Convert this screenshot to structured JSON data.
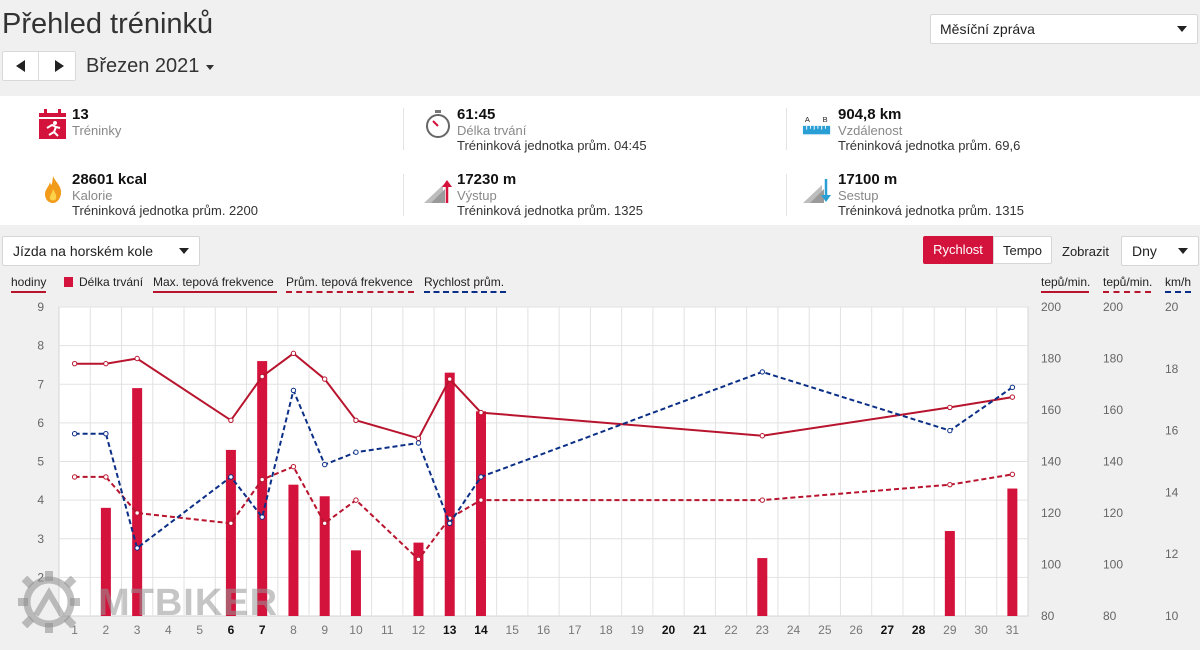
{
  "page": {
    "title": "Přehled tréninků"
  },
  "report_select": {
    "value": "Měsíční zpráva"
  },
  "month_nav": {
    "label": "Březen 2021"
  },
  "stats": [
    {
      "value": "13",
      "label": "Tréninky",
      "sub": "",
      "icon": "running-calendar-icon"
    },
    {
      "value": "61:45",
      "label": "Délka trvání",
      "sub": "Tréninková jednotka prům. 04:45",
      "icon": "stopwatch-icon"
    },
    {
      "value": "904,8 km",
      "label": "Vzdálenost",
      "sub": "Tréninková jednotka prům. 69,6",
      "icon": "ruler-distance-icon"
    },
    {
      "value": "28601 kcal",
      "label": "Kalorie",
      "sub": "Tréninková jednotka prům. 2200",
      "icon": "flame-icon"
    },
    {
      "value": "17230 m",
      "label": "Výstup",
      "sub": "Tréninková jednotka prům. 1325",
      "icon": "ascent-icon"
    },
    {
      "value": "17100 m",
      "label": "Sestup",
      "sub": "Tréninková jednotka prům. 1315",
      "icon": "descent-icon"
    }
  ],
  "controls": {
    "sport": "Jízda na horském kole",
    "speed": "Rychlost",
    "tempo": "Tempo",
    "show": "Zobrazit",
    "days": "Dny"
  },
  "watermark": {
    "text": "MTBIKER"
  },
  "colors": {
    "accent": "#d4133d",
    "maxhr": "#b8142e",
    "speed": "#0b2f86"
  },
  "chart_data": {
    "type": "bar+line",
    "x": [
      1,
      2,
      3,
      4,
      5,
      6,
      7,
      8,
      9,
      10,
      11,
      12,
      13,
      14,
      15,
      16,
      17,
      18,
      19,
      20,
      21,
      22,
      23,
      24,
      25,
      26,
      27,
      28,
      29,
      30,
      31
    ],
    "bold_days": [
      6,
      7,
      13,
      14,
      20,
      21,
      27,
      28
    ],
    "legend": [
      "Délka trvání",
      "Max. tepová frekvence",
      "Prům. tepová frekvence",
      "Rychlost prům."
    ],
    "axes": {
      "left": {
        "label": "hodiny",
        "ticks": [
          2,
          3,
          4,
          5,
          6,
          7,
          8,
          9
        ],
        "range": [
          1,
          9
        ]
      },
      "right1": {
        "label": "tepů/min.",
        "ticks": [
          80,
          100,
          120,
          140,
          160,
          180,
          200
        ],
        "range": [
          80,
          200
        ]
      },
      "right2": {
        "label": "tepů/min.",
        "ticks": [
          80,
          100,
          120,
          140,
          160,
          180,
          200
        ],
        "range": [
          80,
          200
        ]
      },
      "right3": {
        "label": "km/h",
        "ticks": [
          10,
          12,
          14,
          16,
          18,
          20
        ],
        "range": [
          10,
          20
        ]
      }
    },
    "duration_bars": [
      {
        "x": 2,
        "y": 3.8
      },
      {
        "x": 3,
        "y": 6.9
      },
      {
        "x": 6,
        "y": 5.3
      },
      {
        "x": 7,
        "y": 7.6
      },
      {
        "x": 8,
        "y": 4.4
      },
      {
        "x": 9,
        "y": 4.1
      },
      {
        "x": 10,
        "y": 2.7
      },
      {
        "x": 12,
        "y": 2.9
      },
      {
        "x": 13,
        "y": 7.3
      },
      {
        "x": 14,
        "y": 6.3
      },
      {
        "x": 23,
        "y": 2.5
      },
      {
        "x": 29,
        "y": 3.2
      },
      {
        "x": 31,
        "y": 4.3
      }
    ],
    "max_hr": [
      {
        "x": 1,
        "y": 178
      },
      {
        "x": 2,
        "y": 178
      },
      {
        "x": 3,
        "y": 180
      },
      {
        "x": 6,
        "y": 156
      },
      {
        "x": 7,
        "y": 173
      },
      {
        "x": 8,
        "y": 182
      },
      {
        "x": 9,
        "y": 172
      },
      {
        "x": 10,
        "y": 156
      },
      {
        "x": 12,
        "y": 149
      },
      {
        "x": 13,
        "y": 172
      },
      {
        "x": 14,
        "y": 159
      },
      {
        "x": 23,
        "y": 150
      },
      {
        "x": 29,
        "y": 161
      },
      {
        "x": 31,
        "y": 165
      }
    ],
    "avg_hr": [
      {
        "x": 1,
        "y": 134
      },
      {
        "x": 2,
        "y": 134
      },
      {
        "x": 3,
        "y": 120
      },
      {
        "x": 6,
        "y": 116
      },
      {
        "x": 7,
        "y": 133
      },
      {
        "x": 8,
        "y": 138
      },
      {
        "x": 9,
        "y": 116
      },
      {
        "x": 10,
        "y": 125
      },
      {
        "x": 12,
        "y": 102
      },
      {
        "x": 13,
        "y": 118
      },
      {
        "x": 14,
        "y": 125
      },
      {
        "x": 23,
        "y": 125
      },
      {
        "x": 29,
        "y": 131
      },
      {
        "x": 31,
        "y": 135
      }
    ],
    "avg_speed": [
      {
        "x": 1,
        "y": 15.9
      },
      {
        "x": 2,
        "y": 15.9
      },
      {
        "x": 3,
        "y": 12.2
      },
      {
        "x": 6,
        "y": 14.5
      },
      {
        "x": 7,
        "y": 13.2
      },
      {
        "x": 8,
        "y": 17.3
      },
      {
        "x": 9,
        "y": 14.9
      },
      {
        "x": 10,
        "y": 15.3
      },
      {
        "x": 12,
        "y": 15.6
      },
      {
        "x": 13,
        "y": 13.0
      },
      {
        "x": 14,
        "y": 14.5
      },
      {
        "x": 23,
        "y": 17.9
      },
      {
        "x": 29,
        "y": 16.0
      },
      {
        "x": 31,
        "y": 17.4
      }
    ]
  }
}
